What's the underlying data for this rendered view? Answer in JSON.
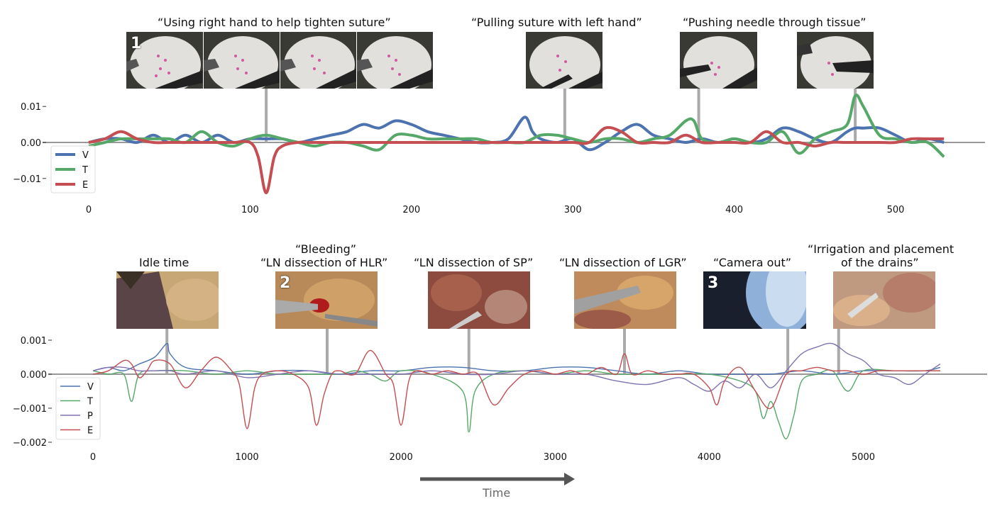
{
  "colors": {
    "V": "#4c72b0",
    "T": "#55a868",
    "P": "#8172b2",
    "E": "#c44e52",
    "axis": "#999999",
    "arrow": "#555555",
    "stem": "#aaaaaa"
  },
  "top_panel": {
    "captions": [
      "“Using right hand to help tighten suture”",
      "“Pulling suture with left hand”",
      "“Pushing needle through tissue”"
    ],
    "badge": "1",
    "thumb_icons": [
      "suture-pad-thumbnail",
      "suture-pad-thumbnail",
      "suture-pad-thumbnail",
      "suture-pad-thumbnail",
      "suture-pad-thumbnail",
      "suture-pad-thumbnail",
      "suture-pad-thumbnail"
    ]
  },
  "bottom_panel": {
    "captions": [
      "Idle time",
      "“Bleeding”",
      "“LN dissection of HLR”",
      "“LN dissection of SP”",
      "“LN dissection of LGR”",
      "“Camera out”",
      "“Irrigation and placement",
      "of the drains”"
    ],
    "badges": [
      "2",
      "3"
    ],
    "thumb_icons": [
      "surgery-thumbnail",
      "surgery-thumbnail",
      "surgery-thumbnail",
      "surgery-thumbnail",
      "surgery-thumbnail",
      "surgery-thumbnail"
    ]
  },
  "time_label": "Time",
  "chart_data": [
    {
      "type": "line",
      "x_ticks": [
        0,
        100,
        200,
        300,
        400,
        500
      ],
      "y_ticks": [
        0.01,
        0.0,
        -0.01
      ],
      "y_tick_labels": [
        "0.01",
        "0.00",
        "−0.01"
      ],
      "xlim": [
        -25,
        560
      ],
      "ylim": [
        -0.015,
        0.0125
      ],
      "legend": {
        "placement": "left",
        "entries": [
          "V",
          "T",
          "E"
        ]
      },
      "event_markers_x": [
        110,
        295,
        378,
        475
      ],
      "series": [
        {
          "name": "V",
          "x": [
            0,
            10,
            20,
            30,
            40,
            50,
            60,
            70,
            80,
            90,
            100,
            110,
            120,
            130,
            140,
            150,
            160,
            170,
            180,
            190,
            200,
            210,
            220,
            230,
            240,
            250,
            260,
            270,
            275,
            280,
            290,
            300,
            310,
            320,
            330,
            340,
            350,
            360,
            370,
            380,
            390,
            400,
            410,
            420,
            430,
            440,
            450,
            460,
            470,
            475,
            480,
            490,
            500,
            510,
            520,
            530
          ],
          "y": [
            0,
            0.001,
            0.001,
            0,
            0.002,
            0,
            0.002,
            0,
            0.002,
            0,
            0.001,
            0.001,
            0.001,
            0,
            0.001,
            0.002,
            0.003,
            0.005,
            0.004,
            0.006,
            0.005,
            0.003,
            0.002,
            0.001,
            0,
            0,
            0.001,
            0.007,
            0.003,
            0.001,
            0,
            0.001,
            -0.002,
            0,
            0.003,
            0.005,
            0.002,
            0.001,
            0,
            0.001,
            0,
            0.001,
            0,
            0.001,
            0.004,
            0.003,
            0.001,
            0,
            0.003,
            0.004,
            0.004,
            0.004,
            0.002,
            0,
            0.001,
            0
          ]
        },
        {
          "name": "T",
          "x": [
            0,
            10,
            20,
            30,
            40,
            50,
            60,
            70,
            80,
            90,
            100,
            110,
            120,
            130,
            140,
            150,
            160,
            170,
            180,
            190,
            200,
            210,
            220,
            230,
            240,
            250,
            260,
            270,
            280,
            290,
            300,
            310,
            320,
            330,
            340,
            350,
            360,
            370,
            375,
            380,
            390,
            400,
            410,
            420,
            430,
            440,
            450,
            460,
            470,
            475,
            480,
            490,
            500,
            510,
            520,
            530
          ],
          "y": [
            -0.001,
            0,
            0.001,
            0.001,
            0.001,
            0.001,
            0,
            0.003,
            0,
            -0.001,
            0.001,
            0.002,
            0.001,
            0,
            -0.001,
            0,
            0,
            -0.001,
            -0.002,
            0.002,
            0.002,
            0.001,
            0.001,
            0.001,
            0.001,
            0,
            0,
            0,
            0.002,
            0.002,
            0.001,
            0,
            0.001,
            0.001,
            0,
            0.001,
            0.002,
            0.006,
            0.006,
            0.001,
            0,
            0.001,
            0,
            0,
            0.003,
            -0.003,
            0.001,
            0.003,
            0.005,
            0.013,
            0.01,
            0.002,
            0.001,
            0,
            0,
            -0.004
          ]
        },
        {
          "name": "E",
          "x": [
            0,
            10,
            20,
            30,
            40,
            50,
            60,
            70,
            80,
            90,
            100,
            105,
            110,
            115,
            120,
            130,
            140,
            150,
            160,
            170,
            180,
            190,
            200,
            210,
            220,
            230,
            240,
            250,
            260,
            270,
            280,
            290,
            300,
            310,
            320,
            330,
            340,
            350,
            360,
            370,
            380,
            390,
            400,
            410,
            420,
            430,
            440,
            450,
            460,
            470,
            480,
            490,
            500,
            510,
            520,
            530
          ],
          "y": [
            0,
            0.001,
            0.003,
            0.001,
            0,
            0,
            0,
            0,
            0,
            0,
            0,
            -0.004,
            -0.014,
            -0.004,
            -0.001,
            0,
            0,
            0,
            0,
            0,
            0,
            0,
            0,
            0,
            0,
            0,
            0,
            0,
            0,
            0,
            0,
            0,
            0,
            0,
            0.004,
            0.003,
            0,
            0,
            0,
            0.002,
            0,
            0,
            0,
            0,
            0.003,
            0,
            0,
            -0.001,
            0,
            0,
            0,
            0,
            0,
            0.001,
            0.001,
            0.001
          ]
        }
      ]
    },
    {
      "type": "line",
      "x_ticks": [
        0,
        1000,
        2000,
        3000,
        4000,
        5000
      ],
      "y_ticks": [
        0.001,
        0.0,
        -0.001,
        -0.002
      ],
      "y_tick_labels": [
        "0.001",
        "0.000",
        "−0.001",
        "−0.002"
      ],
      "xlim": [
        -100,
        5900
      ],
      "ylim": [
        -0.0022,
        0.0011
      ],
      "legend": {
        "placement": "left",
        "entries": [
          "V",
          "T",
          "P",
          "E"
        ]
      },
      "event_markers_x": [
        480,
        1520,
        2440,
        3450,
        4510,
        4840
      ],
      "series": [
        {
          "name": "V",
          "x": [
            0,
            100,
            200,
            300,
            400,
            480,
            500,
            600,
            800,
            1000,
            1200,
            1400,
            1600,
            1800,
            2000,
            2200,
            2400,
            2600,
            2800,
            3000,
            3200,
            3400,
            3600,
            3800,
            4000,
            4200,
            4400,
            4600,
            4800,
            5000,
            5200,
            5400,
            5500
          ],
          "y": [
            0.0001,
            0.0002,
            0.0001,
            0.0003,
            0.0005,
            0.0009,
            0.0006,
            0.0002,
            0.0001,
            0,
            0.0001,
            0.0001,
            0,
            0.0001,
            0.0001,
            0.0002,
            0.0002,
            0.0001,
            0.0001,
            0.0002,
            0.0002,
            0.0001,
            0,
            0.0001,
            0,
            0,
            0,
            0.0001,
            0,
            0.0001,
            0.0001,
            0.0001,
            0.0002
          ]
        },
        {
          "name": "T",
          "x": [
            0,
            100,
            200,
            250,
            300,
            400,
            600,
            800,
            1000,
            1200,
            1400,
            1600,
            1700,
            1800,
            1900,
            2000,
            2200,
            2400,
            2440,
            2480,
            2600,
            2800,
            3000,
            3200,
            3400,
            3600,
            3800,
            4000,
            4200,
            4300,
            4350,
            4400,
            4450,
            4500,
            4550,
            4600,
            4700,
            4800,
            4900,
            5000,
            5200,
            5400,
            5500
          ],
          "y": [
            0.0001,
            0,
            0,
            -0.0008,
            0,
            0.0001,
            0.0001,
            0,
            0.0001,
            0,
            0,
            0,
            0.0001,
            0,
            -0.0002,
            0.0001,
            0,
            -0.0005,
            -0.0017,
            -0.0005,
            0,
            0.0001,
            0,
            0.0001,
            0,
            0,
            0,
            0,
            -0.0002,
            -0.0005,
            -0.0013,
            -0.0008,
            -0.0014,
            -0.0019,
            -0.0012,
            -0.0002,
            0,
            0.0001,
            -0.0005,
            0.0001,
            0.0001,
            0.0001,
            0.0001
          ]
        },
        {
          "name": "P",
          "x": [
            0,
            100,
            200,
            300,
            400,
            500,
            600,
            800,
            1000,
            1200,
            1400,
            1600,
            1800,
            2000,
            2200,
            2400,
            2600,
            2800,
            3000,
            3200,
            3400,
            3600,
            3800,
            3900,
            4000,
            4100,
            4200,
            4300,
            4400,
            4500,
            4600,
            4700,
            4800,
            4900,
            5000,
            5100,
            5200,
            5300,
            5400,
            5500
          ],
          "y": [
            0.0001,
            0.0002,
            0.0002,
            0.0001,
            0.0001,
            0.0001,
            0,
            0.0001,
            -0.0001,
            0,
            0.0001,
            0,
            0,
            0,
            0.0001,
            0,
            0,
            0.0001,
            0,
            0,
            -0.0002,
            -0.0003,
            -0.0001,
            -0.0003,
            -0.0005,
            -0.0002,
            -0.0004,
            0,
            -0.0004,
            0.0001,
            0.0006,
            0.0008,
            0.0009,
            0.0006,
            0.0004,
            0,
            -0.0001,
            -0.0003,
            0,
            0.0003
          ]
        },
        {
          "name": "E",
          "x": [
            0,
            100,
            200,
            250,
            300,
            350,
            400,
            500,
            600,
            700,
            800,
            900,
            950,
            1000,
            1050,
            1100,
            1200,
            1300,
            1400,
            1450,
            1500,
            1550,
            1600,
            1700,
            1800,
            1900,
            1950,
            2000,
            2050,
            2100,
            2200,
            2300,
            2400,
            2500,
            2600,
            2700,
            2800,
            2900,
            3000,
            3100,
            3200,
            3300,
            3400,
            3450,
            3500,
            3600,
            3700,
            3800,
            3900,
            4000,
            4050,
            4100,
            4200,
            4300,
            4400,
            4500,
            4600,
            4700,
            4800,
            4900,
            5000,
            5100,
            5200,
            5300,
            5400,
            5500
          ],
          "y": [
            0,
            0.0001,
            0.0004,
            0.0003,
            -0.0001,
            0.0001,
            0.0004,
            0.0003,
            -0.0004,
            0.0001,
            0.0005,
            0.0001,
            -0.0003,
            -0.0016,
            -0.0004,
            0,
            0.0001,
            0,
            -0.0004,
            -0.0015,
            -0.0006,
            0,
            0.0001,
            0,
            0.0007,
            0,
            -0.0003,
            -0.0015,
            -0.0002,
            0.0001,
            0,
            0.0001,
            0,
            0,
            -0.0009,
            -0.0004,
            0,
            0.0001,
            0,
            0.0001,
            0,
            0.0002,
            0,
            0.0006,
            0,
            0.0001,
            0,
            0,
            0,
            -0.0004,
            -0.0009,
            -0.0002,
            0.0002,
            -0.0005,
            -0.001,
            0,
            0.0001,
            0.0002,
            0.0001,
            0.0001,
            0,
            0.0001,
            0.0001,
            0.0001,
            0.0001,
            0.0001
          ]
        }
      ]
    }
  ]
}
